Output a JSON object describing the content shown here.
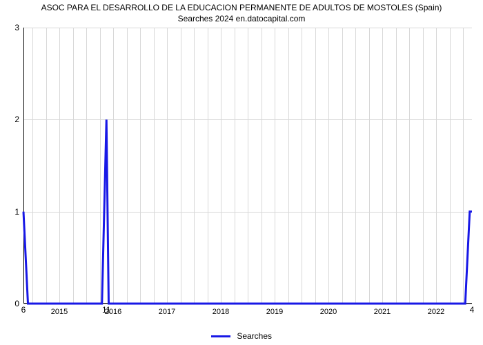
{
  "chart": {
    "type": "line",
    "title_line1": "ASOC PARA EL DESARROLLO DE LA EDUCACION PERMANENTE DE ADULTOS DE MOSTOLES (Spain)",
    "title_line2": "Searches 2024 en.datocapital.com",
    "title_fontsize": 12,
    "title_color": "#000000",
    "background_color": "#ffffff",
    "grid_color": "#d8d8d8",
    "axis_color": "#000000",
    "line_color": "#1818e6",
    "line_width": 3,
    "ylim": [
      0,
      3
    ],
    "yticks": [
      0,
      1,
      2,
      3
    ],
    "xlim": [
      0,
      100
    ],
    "x_categories": [
      "2015",
      "2016",
      "2017",
      "2018",
      "2019",
      "2020",
      "2021",
      "2022"
    ],
    "x_tick_positions": [
      8,
      20,
      32,
      44,
      56,
      68,
      80,
      92
    ],
    "minor_v_positions": [
      2.0,
      5.0,
      8.0,
      11.0,
      14.0,
      17.0,
      20.0,
      23.0,
      26.0,
      29.0,
      32.0,
      35.0,
      38.0,
      41.0,
      44.0,
      47.0,
      50.0,
      53.0,
      56.0,
      59.0,
      62.0,
      65.0,
      68.0,
      71.0,
      74.0,
      77.0,
      80.0,
      83.0,
      86.0,
      89.0,
      92.0,
      95.0,
      98.0
    ],
    "series": {
      "name": "Searches",
      "x": [
        0.0,
        1.0,
        2.0,
        17.5,
        18.5,
        19.0,
        19.5,
        20.5,
        98.5,
        99.5,
        100.0
      ],
      "y": [
        1.0,
        0.0,
        0.0,
        0.0,
        2.0,
        0.0,
        0.0,
        0.0,
        0.0,
        1.0,
        1.0
      ]
    },
    "data_labels": [
      {
        "text": "6",
        "x": 0.0,
        "y_offset_below_axis": 2
      },
      {
        "text": "11",
        "x": 18.5,
        "y_offset_below_axis": 2
      },
      {
        "text": "4",
        "x": 100.0,
        "y_offset_below_axis": 2
      }
    ],
    "legend": {
      "label": "Searches",
      "color": "#1818e6"
    }
  }
}
